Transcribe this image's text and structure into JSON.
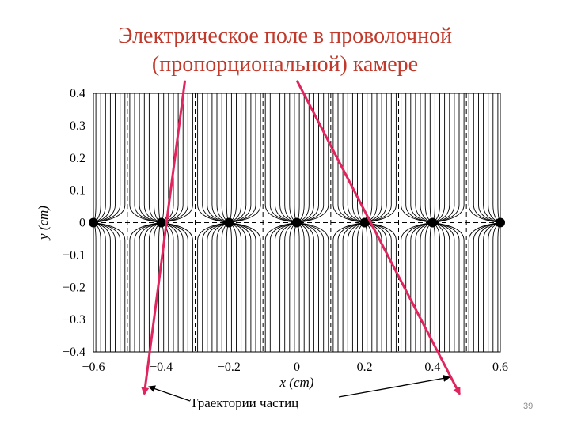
{
  "slide": {
    "title_line1": "Электрическое поле в проволочной",
    "title_line2": "(пропорциональной) камере",
    "caption": "Траектории частиц",
    "page_number": "39"
  },
  "plot": {
    "x_label": "x (cm)",
    "y_label": "y (cm)",
    "x_range": [
      -0.6,
      0.6
    ],
    "y_range": [
      -0.4,
      0.4
    ],
    "x_ticks": [
      "−0.6",
      "−0.4",
      "−0.2",
      "0",
      "0.2",
      "0.4",
      "0.6"
    ],
    "y_ticks": [
      "0.4",
      "0.3",
      "0.2",
      "0.1",
      "0",
      "−0.1",
      "−0.2",
      "−0.3",
      "−0.4"
    ],
    "wire_x_positions": [
      -0.6,
      -0.4,
      -0.2,
      0,
      0.2,
      0.4,
      0.6
    ],
    "cell_boundary_x_positions": [
      -0.5,
      -0.3,
      -0.1,
      0.1,
      0.3,
      0.5
    ],
    "field_lines_per_wire": 14
  },
  "trajectories": [
    {
      "from": [
        -0.33,
        0.44
      ],
      "to": [
        -0.45,
        -0.53
      ]
    },
    {
      "from": [
        0.0,
        0.44
      ],
      "to": [
        0.48,
        -0.53
      ]
    }
  ],
  "colors": {
    "title": "#c0392b",
    "trajectory": "#e0245e",
    "field_lines": "#000000"
  }
}
